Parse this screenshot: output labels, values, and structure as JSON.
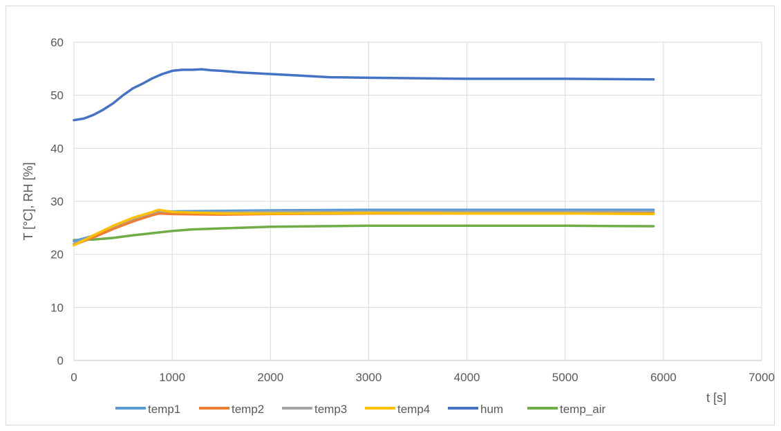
{
  "chart_data": {
    "type": "line",
    "title": "",
    "xlabel": "t [s]",
    "ylabel": "T [°C], RH [%]",
    "xlim": [
      0,
      7000
    ],
    "ylim": [
      0,
      60
    ],
    "xticks": [
      0,
      1000,
      2000,
      3000,
      4000,
      5000,
      6000,
      7000
    ],
    "yticks": [
      0,
      10,
      20,
      30,
      40,
      50,
      60
    ],
    "grid": true,
    "legend_position": "bottom",
    "series": [
      {
        "name": "temp1",
        "color": "#5b9bd5",
        "points": [
          [
            0,
            22.5
          ],
          [
            200,
            23.5
          ],
          [
            400,
            25.0
          ],
          [
            600,
            26.5
          ],
          [
            800,
            27.8
          ],
          [
            900,
            28.1
          ],
          [
            1000,
            28.1
          ],
          [
            1500,
            28.2
          ],
          [
            2000,
            28.3
          ],
          [
            3000,
            28.4
          ],
          [
            4000,
            28.4
          ],
          [
            5000,
            28.4
          ],
          [
            5900,
            28.4
          ]
        ]
      },
      {
        "name": "temp2",
        "color": "#ed7d31",
        "points": [
          [
            0,
            21.8
          ],
          [
            200,
            23.2
          ],
          [
            400,
            24.8
          ],
          [
            600,
            26.2
          ],
          [
            800,
            27.4
          ],
          [
            870,
            27.7
          ],
          [
            1000,
            27.6
          ],
          [
            1500,
            27.5
          ],
          [
            2000,
            27.6
          ],
          [
            3000,
            27.7
          ],
          [
            4000,
            27.7
          ],
          [
            5000,
            27.7
          ],
          [
            5900,
            27.7
          ]
        ]
      },
      {
        "name": "temp3",
        "color": "#a5a5a5",
        "points": [
          [
            0,
            22.0
          ],
          [
            200,
            23.4
          ],
          [
            400,
            25.0
          ],
          [
            600,
            26.5
          ],
          [
            800,
            27.6
          ],
          [
            880,
            27.9
          ],
          [
            1000,
            27.9
          ],
          [
            1500,
            27.9
          ],
          [
            2000,
            28.0
          ],
          [
            3000,
            28.0
          ],
          [
            4000,
            28.0
          ],
          [
            5000,
            28.0
          ],
          [
            5900,
            28.0
          ]
        ]
      },
      {
        "name": "temp4",
        "color": "#ffc000",
        "points": [
          [
            0,
            21.7
          ],
          [
            200,
            23.6
          ],
          [
            400,
            25.4
          ],
          [
            600,
            26.9
          ],
          [
            800,
            28.0
          ],
          [
            860,
            28.4
          ],
          [
            1000,
            28.0
          ],
          [
            1500,
            27.7
          ],
          [
            2000,
            27.7
          ],
          [
            3000,
            27.8
          ],
          [
            4000,
            27.7
          ],
          [
            5000,
            27.7
          ],
          [
            5900,
            27.6
          ]
        ]
      },
      {
        "name": "hum",
        "color": "#4472c4",
        "points": [
          [
            0,
            45.3
          ],
          [
            100,
            45.6
          ],
          [
            200,
            46.3
          ],
          [
            300,
            47.3
          ],
          [
            400,
            48.5
          ],
          [
            500,
            50.0
          ],
          [
            600,
            51.3
          ],
          [
            700,
            52.2
          ],
          [
            800,
            53.2
          ],
          [
            900,
            54.0
          ],
          [
            1000,
            54.6
          ],
          [
            1100,
            54.8
          ],
          [
            1200,
            54.8
          ],
          [
            1300,
            54.9
          ],
          [
            1400,
            54.7
          ],
          [
            1500,
            54.6
          ],
          [
            1700,
            54.3
          ],
          [
            2000,
            54.0
          ],
          [
            2300,
            53.7
          ],
          [
            2600,
            53.4
          ],
          [
            3000,
            53.3
          ],
          [
            3500,
            53.2
          ],
          [
            4000,
            53.1
          ],
          [
            5000,
            53.1
          ],
          [
            5900,
            53.0
          ]
        ]
      },
      {
        "name": "temp_air",
        "color": "#70ad47",
        "points": [
          [
            0,
            22.7
          ],
          [
            200,
            22.8
          ],
          [
            400,
            23.1
          ],
          [
            600,
            23.6
          ],
          [
            800,
            24.0
          ],
          [
            1000,
            24.4
          ],
          [
            1200,
            24.7
          ],
          [
            1500,
            24.9
          ],
          [
            2000,
            25.2
          ],
          [
            2500,
            25.3
          ],
          [
            3000,
            25.4
          ],
          [
            3500,
            25.4
          ],
          [
            4000,
            25.4
          ],
          [
            5000,
            25.4
          ],
          [
            5900,
            25.3
          ]
        ]
      }
    ]
  }
}
